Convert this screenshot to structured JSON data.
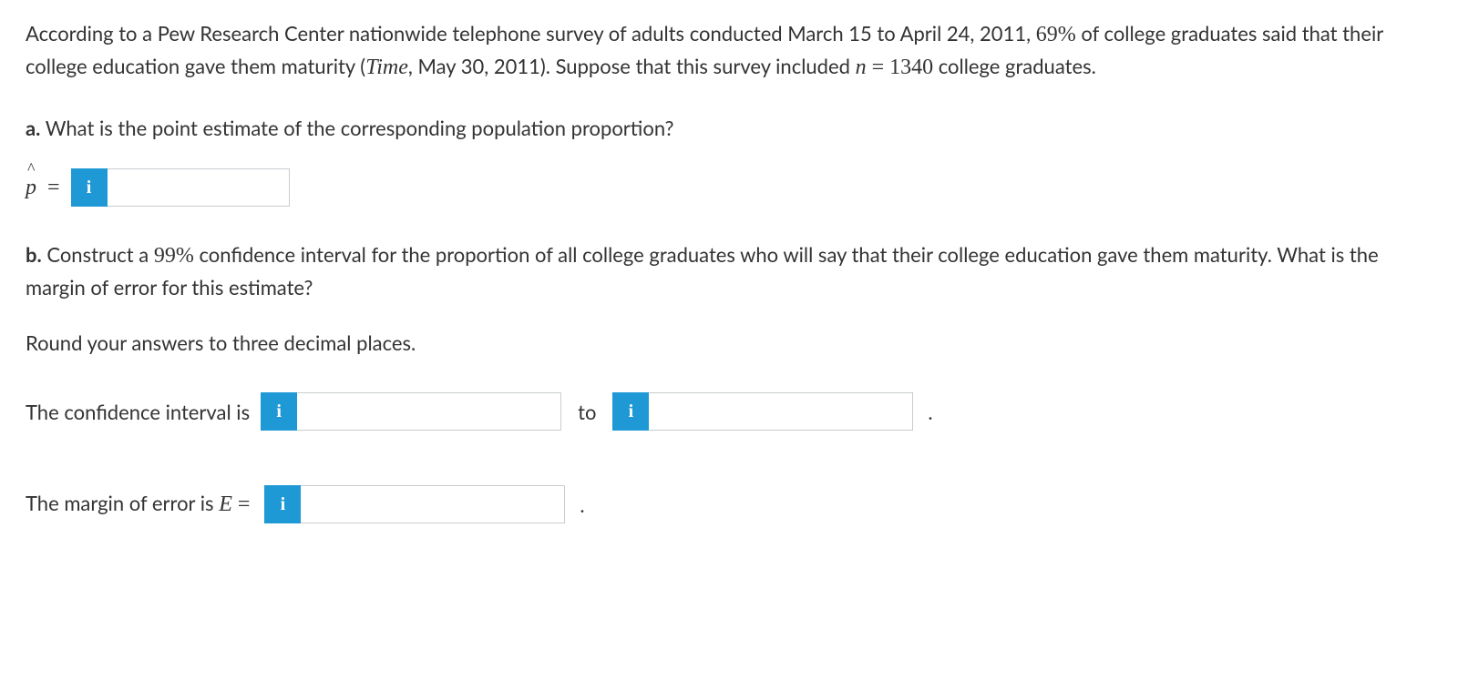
{
  "intro": {
    "text_parts": {
      "p1": "According to a Pew Research Center nationwide telephone survey of adults conducted March 15 to April 24, 2011, ",
      "percent": "69%",
      "p2": " of college graduates said that their college education gave them maturity (",
      "source": "Time",
      "p3": ", May 30, 2011). Suppose that this survey included ",
      "n_var": "n",
      "eq": " = ",
      "n_val": "1340",
      "p4": " college graduates."
    }
  },
  "part_a": {
    "label": "a.",
    "question": " What is the point estimate of the corresponding population proportion?",
    "symbol": "p",
    "equals": "=",
    "info_icon": "i"
  },
  "part_b": {
    "label": "b.",
    "question_p1": " Construct a ",
    "percent": "99%",
    "question_p2": " confidence interval for the proportion of all college graduates who will say that their college education gave them maturity. What is the margin of error for this estimate?",
    "round_note": "Round your answers to three decimal places.",
    "ci_label": "The confidence interval is",
    "to": "to",
    "period": ".",
    "me_label_p1": "The margin of error is ",
    "me_var": "E",
    "me_eq": " =",
    "info_icon": "i"
  }
}
